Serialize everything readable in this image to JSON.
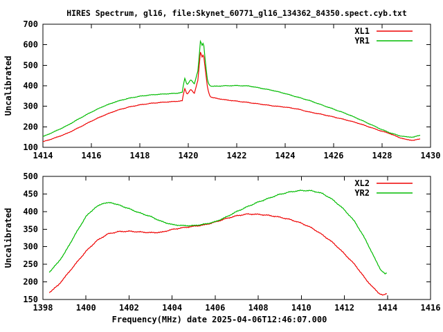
{
  "title": "HIRES Spectrum, gl16, file:Skynet_60771_gl16_134362_84350.spect.cyb.txt",
  "xlabel": "Frequency(MHz) date 2025-04-06T12:46:07.000",
  "colors": {
    "red": "#ee0000",
    "green": "#00bb00",
    "axis": "#000000",
    "background": "#ffffff"
  },
  "chart_data": [
    {
      "type": "line",
      "panel": "top",
      "ylabel": "Uncalibrated",
      "xlim": [
        1414,
        1430
      ],
      "ylim": [
        100,
        700
      ],
      "xticks": [
        1414,
        1416,
        1418,
        1420,
        1422,
        1424,
        1426,
        1428,
        1430
      ],
      "yticks": [
        100,
        200,
        300,
        400,
        500,
        600,
        700
      ],
      "grid": false,
      "legend_position": "top-right-inside",
      "series": [
        {
          "name": "XL1",
          "color": "#ee0000",
          "points": [
            [
              1414.0,
              127
            ],
            [
              1414.5,
              146
            ],
            [
              1415,
              168
            ],
            [
              1415.5,
              197
            ],
            [
              1416,
              228
            ],
            [
              1416.5,
              255
            ],
            [
              1417,
              278
            ],
            [
              1417.5,
              295
            ],
            [
              1418,
              307
            ],
            [
              1418.5,
              315
            ],
            [
              1419,
              320
            ],
            [
              1419.5,
              324
            ],
            [
              1419.75,
              327
            ],
            [
              1419.85,
              388
            ],
            [
              1419.95,
              358
            ],
            [
              1420.1,
              383
            ],
            [
              1420.25,
              362
            ],
            [
              1420.4,
              430
            ],
            [
              1420.5,
              565
            ],
            [
              1420.57,
              540
            ],
            [
              1420.63,
              553
            ],
            [
              1420.7,
              480
            ],
            [
              1420.8,
              385
            ],
            [
              1420.9,
              348
            ],
            [
              1421,
              342
            ],
            [
              1421.5,
              332
            ],
            [
              1422,
              325
            ],
            [
              1422.5,
              318
            ],
            [
              1423,
              310
            ],
            [
              1423.5,
              302
            ],
            [
              1424,
              296
            ],
            [
              1424.5,
              287
            ],
            [
              1425,
              272
            ],
            [
              1425.5,
              261
            ],
            [
              1426,
              248
            ],
            [
              1426.5,
              234
            ],
            [
              1427,
              218
            ],
            [
              1427.5,
              198
            ],
            [
              1428,
              178
            ],
            [
              1428.3,
              168
            ],
            [
              1428.7,
              148
            ],
            [
              1429,
              138
            ],
            [
              1429.3,
              134
            ],
            [
              1429.6,
              142
            ]
          ]
        },
        {
          "name": "YR1",
          "color": "#00bb00",
          "points": [
            [
              1414.0,
              152
            ],
            [
              1414.5,
              178
            ],
            [
              1415,
              206
            ],
            [
              1415.5,
              240
            ],
            [
              1416,
              272
            ],
            [
              1416.5,
              300
            ],
            [
              1417,
              322
            ],
            [
              1417.5,
              338
            ],
            [
              1418,
              349
            ],
            [
              1418.5,
              356
            ],
            [
              1419,
              360
            ],
            [
              1419.5,
              363
            ],
            [
              1419.75,
              368
            ],
            [
              1419.85,
              438
            ],
            [
              1419.95,
              405
            ],
            [
              1420.1,
              430
            ],
            [
              1420.25,
              408
            ],
            [
              1420.4,
              475
            ],
            [
              1420.5,
              618
            ],
            [
              1420.57,
              597
            ],
            [
              1420.63,
              611
            ],
            [
              1420.7,
              520
            ],
            [
              1420.8,
              420
            ],
            [
              1420.9,
              400
            ],
            [
              1421,
              397
            ],
            [
              1421.5,
              400
            ],
            [
              1422,
              401
            ],
            [
              1422.5,
              399
            ],
            [
              1423,
              388
            ],
            [
              1423.5,
              377
            ],
            [
              1424,
              362
            ],
            [
              1424.5,
              345
            ],
            [
              1425,
              328
            ],
            [
              1425.5,
              307
            ],
            [
              1426,
              286
            ],
            [
              1426.5,
              265
            ],
            [
              1427,
              240
            ],
            [
              1427.5,
              213
            ],
            [
              1428,
              186
            ],
            [
              1428.3,
              172
            ],
            [
              1428.7,
              157
            ],
            [
              1429,
              151
            ],
            [
              1429.3,
              150
            ],
            [
              1429.6,
              160
            ]
          ]
        }
      ]
    },
    {
      "type": "line",
      "panel": "bottom",
      "ylabel": "Uncalibrated",
      "xlim": [
        1398,
        1416
      ],
      "ylim": [
        150,
        500
      ],
      "xticks": [
        1398,
        1400,
        1402,
        1404,
        1406,
        1408,
        1410,
        1412,
        1414,
        1416
      ],
      "yticks": [
        150,
        200,
        250,
        300,
        350,
        400,
        450,
        500
      ],
      "grid": false,
      "legend_position": "top-right-inside",
      "series": [
        {
          "name": "XL2",
          "color": "#ee0000",
          "points": [
            [
              1398.3,
              170
            ],
            [
              1398.7,
              190
            ],
            [
              1399,
              212
            ],
            [
              1399.5,
              250
            ],
            [
              1400,
              287
            ],
            [
              1400.5,
              317
            ],
            [
              1401,
              336
            ],
            [
              1401.5,
              343
            ],
            [
              1402,
              344
            ],
            [
              1402.5,
              342
            ],
            [
              1403,
              340
            ],
            [
              1403.5,
              341
            ],
            [
              1404,
              349
            ],
            [
              1404.5,
              354
            ],
            [
              1405,
              358
            ],
            [
              1405.5,
              362
            ],
            [
              1406,
              370
            ],
            [
              1406.5,
              380
            ],
            [
              1407,
              388
            ],
            [
              1407.5,
              393
            ],
            [
              1408,
              392
            ],
            [
              1408.5,
              389
            ],
            [
              1409,
              384
            ],
            [
              1409.5,
              377
            ],
            [
              1410,
              367
            ],
            [
              1410.5,
              353
            ],
            [
              1411,
              333
            ],
            [
              1411.5,
              310
            ],
            [
              1412,
              280
            ],
            [
              1412.5,
              248
            ],
            [
              1413,
              207
            ],
            [
              1413.3,
              186
            ],
            [
              1413.6,
              168
            ],
            [
              1413.8,
              162
            ],
            [
              1414,
              167
            ]
          ]
        },
        {
          "name": "YR2",
          "color": "#00bb00",
          "points": [
            [
              1398.3,
              228
            ],
            [
              1398.7,
              255
            ],
            [
              1399,
              281
            ],
            [
              1399.5,
              335
            ],
            [
              1400,
              386
            ],
            [
              1400.4,
              410
            ],
            [
              1400.8,
              424
            ],
            [
              1401.2,
              425
            ],
            [
              1401.6,
              417
            ],
            [
              1402,
              408
            ],
            [
              1402.5,
              396
            ],
            [
              1403,
              386
            ],
            [
              1403.5,
              372
            ],
            [
              1404,
              363
            ],
            [
              1404.5,
              360
            ],
            [
              1405,
              360
            ],
            [
              1405.5,
              364
            ],
            [
              1406,
              371
            ],
            [
              1406.5,
              384
            ],
            [
              1407,
              400
            ],
            [
              1407.5,
              414
            ],
            [
              1408,
              427
            ],
            [
              1408.5,
              438
            ],
            [
              1409,
              449
            ],
            [
              1409.5,
              456
            ],
            [
              1410,
              460
            ],
            [
              1410.5,
              459
            ],
            [
              1411,
              451
            ],
            [
              1411.5,
              432
            ],
            [
              1412,
              405
            ],
            [
              1412.5,
              370
            ],
            [
              1413,
              318
            ],
            [
              1413.4,
              268
            ],
            [
              1413.7,
              233
            ],
            [
              1413.9,
              222
            ],
            [
              1414,
              227
            ]
          ]
        }
      ]
    }
  ]
}
